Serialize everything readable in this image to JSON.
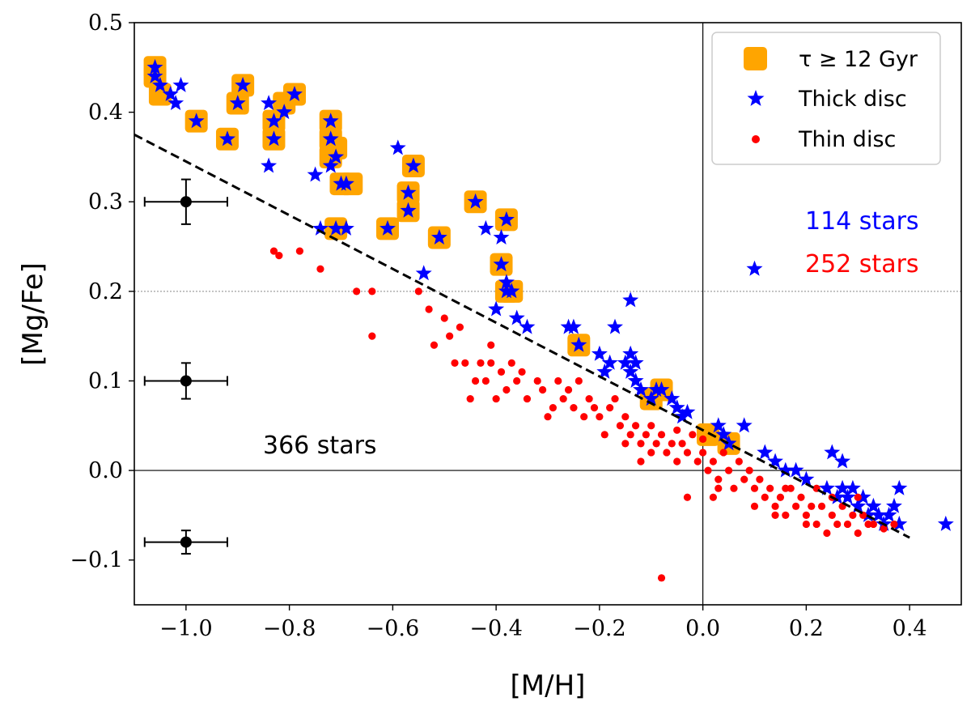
{
  "chart_data": {
    "type": "scatter",
    "xlabel": "[M/H]",
    "ylabel": "[Mg/Fe]",
    "xlim": [
      -1.1,
      0.5
    ],
    "ylim": [
      -0.15,
      0.5
    ],
    "xticks": [
      -1.0,
      -0.8,
      -0.6,
      -0.4,
      -0.2,
      0.0,
      0.2,
      0.4
    ],
    "xtick_labels": [
      "−1.0",
      "−0.8",
      "−0.6",
      "−0.4",
      "−0.2",
      "0.0",
      "0.2",
      "0.4"
    ],
    "yticks": [
      -0.1,
      0.0,
      0.1,
      0.2,
      0.3,
      0.4,
      0.5
    ],
    "ytick_labels": [
      "−0.1",
      "0.0",
      "0.1",
      "0.2",
      "0.3",
      "0.4",
      "0.5"
    ],
    "colors": {
      "old": "#ffa500",
      "thick": "#0000ff",
      "thin": "#ff0000",
      "fit": "#000000",
      "ref": "#888888"
    },
    "legend": {
      "position": "top-right",
      "entries": [
        {
          "key": "old",
          "label": "τ ≥ 12 Gyr"
        },
        {
          "key": "thick",
          "label": "Thick disc"
        },
        {
          "key": "thin",
          "label": "Thin disc"
        }
      ]
    },
    "annotations": {
      "total": "366 stars",
      "thick_count": "114 stars",
      "thin_count": "252 stars"
    },
    "fit_line": {
      "x": [
        -1.1,
        0.4
      ],
      "y": [
        0.375,
        -0.075
      ]
    },
    "reference_lines": {
      "vertical_x": 0.0,
      "horizontal_y": 0.0,
      "dotted_y": 0.2
    },
    "error_bars": [
      {
        "x": -1.0,
        "y": 0.3,
        "xerr": 0.08,
        "yerr": 0.025
      },
      {
        "x": -1.0,
        "y": 0.1,
        "xerr": 0.08,
        "yerr": 0.02
      },
      {
        "x": -1.0,
        "y": -0.08,
        "xerr": 0.08,
        "yerr": 0.013
      }
    ],
    "series": [
      {
        "name": "τ ≥ 12 Gyr",
        "key": "old",
        "marker": "square",
        "points": [
          [
            -1.06,
            0.45
          ],
          [
            -1.06,
            0.44
          ],
          [
            -1.05,
            0.42
          ],
          [
            -0.98,
            0.39
          ],
          [
            -0.92,
            0.37
          ],
          [
            -0.9,
            0.41
          ],
          [
            -0.89,
            0.43
          ],
          [
            -0.83,
            0.37
          ],
          [
            -0.83,
            0.39
          ],
          [
            -0.81,
            0.41
          ],
          [
            -0.79,
            0.42
          ],
          [
            -0.72,
            0.39
          ],
          [
            -0.72,
            0.37
          ],
          [
            -0.72,
            0.35
          ],
          [
            -0.71,
            0.36
          ],
          [
            -0.7,
            0.32
          ],
          [
            -0.68,
            0.32
          ],
          [
            -0.71,
            0.27
          ],
          [
            -0.61,
            0.27
          ],
          [
            -0.57,
            0.31
          ],
          [
            -0.57,
            0.29
          ],
          [
            -0.56,
            0.34
          ],
          [
            -0.51,
            0.26
          ],
          [
            -0.44,
            0.3
          ],
          [
            -0.39,
            0.23
          ],
          [
            -0.38,
            0.28
          ],
          [
            -0.38,
            0.2
          ],
          [
            -0.37,
            0.2
          ],
          [
            -0.24,
            0.14
          ],
          [
            -0.1,
            0.08
          ],
          [
            -0.08,
            0.09
          ],
          [
            0.01,
            0.04
          ],
          [
            0.05,
            0.03
          ]
        ]
      },
      {
        "name": "Thick disc",
        "key": "thick",
        "marker": "star",
        "points": [
          [
            -1.06,
            0.45
          ],
          [
            -1.06,
            0.44
          ],
          [
            -1.05,
            0.43
          ],
          [
            -1.03,
            0.42
          ],
          [
            -1.01,
            0.43
          ],
          [
            -1.02,
            0.41
          ],
          [
            -0.98,
            0.39
          ],
          [
            -0.92,
            0.37
          ],
          [
            -0.9,
            0.41
          ],
          [
            -0.89,
            0.43
          ],
          [
            -0.84,
            0.41
          ],
          [
            -0.84,
            0.34
          ],
          [
            -0.83,
            0.37
          ],
          [
            -0.83,
            0.39
          ],
          [
            -0.81,
            0.4
          ],
          [
            -0.79,
            0.42
          ],
          [
            -0.75,
            0.33
          ],
          [
            -0.74,
            0.27
          ],
          [
            -0.72,
            0.39
          ],
          [
            -0.72,
            0.37
          ],
          [
            -0.72,
            0.34
          ],
          [
            -0.71,
            0.35
          ],
          [
            -0.7,
            0.32
          ],
          [
            -0.69,
            0.32
          ],
          [
            -0.71,
            0.27
          ],
          [
            -0.69,
            0.27
          ],
          [
            -0.61,
            0.27
          ],
          [
            -0.59,
            0.36
          ],
          [
            -0.57,
            0.31
          ],
          [
            -0.57,
            0.29
          ],
          [
            -0.56,
            0.34
          ],
          [
            -0.54,
            0.22
          ],
          [
            -0.51,
            0.26
          ],
          [
            -0.44,
            0.3
          ],
          [
            -0.42,
            0.27
          ],
          [
            -0.4,
            0.18
          ],
          [
            -0.39,
            0.26
          ],
          [
            -0.39,
            0.23
          ],
          [
            -0.38,
            0.28
          ],
          [
            -0.38,
            0.21
          ],
          [
            -0.38,
            0.2
          ],
          [
            -0.37,
            0.2
          ],
          [
            -0.36,
            0.17
          ],
          [
            -0.34,
            0.16
          ],
          [
            -0.26,
            0.16
          ],
          [
            -0.25,
            0.16
          ],
          [
            -0.24,
            0.14
          ],
          [
            -0.2,
            0.13
          ],
          [
            -0.18,
            0.12
          ],
          [
            -0.19,
            0.11
          ],
          [
            -0.17,
            0.16
          ],
          [
            -0.15,
            0.12
          ],
          [
            -0.14,
            0.13
          ],
          [
            -0.14,
            0.11
          ],
          [
            -0.13,
            0.12
          ],
          [
            -0.13,
            0.1
          ],
          [
            -0.14,
            0.19
          ],
          [
            -0.12,
            0.09
          ],
          [
            -0.1,
            0.08
          ],
          [
            -0.09,
            0.09
          ],
          [
            -0.08,
            0.09
          ],
          [
            -0.06,
            0.08
          ],
          [
            -0.05,
            0.07
          ],
          [
            -0.04,
            0.06
          ],
          [
            -0.03,
            0.065
          ],
          [
            0.03,
            0.05
          ],
          [
            0.04,
            0.04
          ],
          [
            0.05,
            0.03
          ],
          [
            0.08,
            0.05
          ],
          [
            0.1,
            0.225
          ],
          [
            0.12,
            0.02
          ],
          [
            0.14,
            0.01
          ],
          [
            0.16,
            0.0
          ],
          [
            0.18,
            0.0
          ],
          [
            0.2,
            -0.01
          ],
          [
            0.24,
            -0.02
          ],
          [
            0.25,
            0.02
          ],
          [
            0.27,
            0.01
          ],
          [
            0.26,
            -0.03
          ],
          [
            0.27,
            -0.02
          ],
          [
            0.28,
            -0.03
          ],
          [
            0.29,
            -0.02
          ],
          [
            0.3,
            -0.04
          ],
          [
            0.31,
            -0.03
          ],
          [
            0.32,
            -0.05
          ],
          [
            0.33,
            -0.04
          ],
          [
            0.34,
            -0.05
          ],
          [
            0.35,
            -0.06
          ],
          [
            0.36,
            -0.05
          ],
          [
            0.37,
            -0.04
          ],
          [
            0.38,
            -0.02
          ],
          [
            0.38,
            -0.06
          ],
          [
            0.47,
            -0.06
          ]
        ]
      },
      {
        "name": "Thin disc",
        "key": "thin",
        "marker": "circle",
        "points": [
          [
            -0.83,
            0.245
          ],
          [
            -0.82,
            0.24
          ],
          [
            -0.78,
            0.245
          ],
          [
            -0.74,
            0.225
          ],
          [
            -0.67,
            0.2
          ],
          [
            -0.64,
            0.2
          ],
          [
            -0.64,
            0.15
          ],
          [
            -0.55,
            0.2
          ],
          [
            -0.53,
            0.18
          ],
          [
            -0.52,
            0.14
          ],
          [
            -0.5,
            0.17
          ],
          [
            -0.49,
            0.15
          ],
          [
            -0.48,
            0.12
          ],
          [
            -0.47,
            0.16
          ],
          [
            -0.46,
            0.12
          ],
          [
            -0.45,
            0.08
          ],
          [
            -0.44,
            0.1
          ],
          [
            -0.43,
            0.12
          ],
          [
            -0.42,
            0.1
          ],
          [
            -0.41,
            0.14
          ],
          [
            -0.41,
            0.12
          ],
          [
            -0.4,
            0.08
          ],
          [
            -0.39,
            0.11
          ],
          [
            -0.38,
            0.09
          ],
          [
            -0.37,
            0.12
          ],
          [
            -0.36,
            0.1
          ],
          [
            -0.35,
            0.11
          ],
          [
            -0.34,
            0.08
          ],
          [
            -0.32,
            0.1
          ],
          [
            -0.31,
            0.09
          ],
          [
            -0.3,
            0.06
          ],
          [
            -0.29,
            0.07
          ],
          [
            -0.28,
            0.1
          ],
          [
            -0.27,
            0.08
          ],
          [
            -0.26,
            0.09
          ],
          [
            -0.25,
            0.07
          ],
          [
            -0.24,
            0.1
          ],
          [
            -0.23,
            0.06
          ],
          [
            -0.22,
            0.08
          ],
          [
            -0.21,
            0.07
          ],
          [
            -0.2,
            0.06
          ],
          [
            -0.19,
            0.04
          ],
          [
            -0.18,
            0.07
          ],
          [
            -0.17,
            0.08
          ],
          [
            -0.16,
            0.05
          ],
          [
            -0.15,
            0.06
          ],
          [
            -0.14,
            0.04
          ],
          [
            -0.13,
            0.05
          ],
          [
            -0.12,
            0.03
          ],
          [
            -0.11,
            0.04
          ],
          [
            -0.1,
            0.05
          ],
          [
            -0.09,
            0.03
          ],
          [
            -0.08,
            0.04
          ],
          [
            -0.07,
            0.02
          ],
          [
            -0.06,
            0.03
          ],
          [
            -0.05,
            0.01
          ],
          [
            -0.04,
            0.03
          ],
          [
            -0.03,
            0.02
          ],
          [
            -0.02,
            0.04
          ],
          [
            -0.01,
            0.01
          ],
          [
            0.0,
            0.02
          ],
          [
            0.01,
            0.0
          ],
          [
            0.02,
            0.01
          ],
          [
            0.03,
            -0.01
          ],
          [
            0.04,
            0.02
          ],
          [
            0.05,
            0.0
          ],
          [
            0.06,
            -0.02
          ],
          [
            0.07,
            0.01
          ],
          [
            0.08,
            -0.01
          ],
          [
            0.09,
            0.0
          ],
          [
            0.1,
            -0.02
          ],
          [
            0.11,
            -0.01
          ],
          [
            0.12,
            -0.03
          ],
          [
            0.13,
            -0.02
          ],
          [
            0.14,
            -0.04
          ],
          [
            0.15,
            -0.03
          ],
          [
            0.16,
            -0.05
          ],
          [
            0.17,
            -0.02
          ],
          [
            0.18,
            -0.04
          ],
          [
            0.19,
            -0.03
          ],
          [
            0.2,
            -0.05
          ],
          [
            0.21,
            -0.04
          ],
          [
            0.22,
            -0.06
          ],
          [
            0.23,
            -0.04
          ],
          [
            0.24,
            -0.07
          ],
          [
            0.25,
            -0.05
          ],
          [
            0.26,
            -0.06
          ],
          [
            0.27,
            -0.04
          ],
          [
            0.28,
            -0.06
          ],
          [
            0.29,
            -0.05
          ],
          [
            0.3,
            -0.07
          ],
          [
            0.31,
            -0.05
          ],
          [
            0.32,
            -0.06
          ],
          [
            0.33,
            -0.06
          ],
          [
            0.35,
            -0.065
          ],
          [
            0.37,
            -0.06
          ],
          [
            -0.03,
            -0.03
          ],
          [
            -0.08,
            -0.12
          ],
          [
            0.03,
            -0.02
          ],
          [
            0.16,
            -0.02
          ],
          [
            -0.1,
            0.02
          ],
          [
            -0.12,
            0.01
          ],
          [
            -0.15,
            0.03
          ],
          [
            -0.05,
            0.045
          ],
          [
            0.0,
            0.035
          ],
          [
            0.02,
            -0.03
          ],
          [
            0.1,
            -0.04
          ],
          [
            0.14,
            -0.05
          ],
          [
            0.2,
            -0.06
          ],
          [
            0.22,
            -0.02
          ],
          [
            0.25,
            -0.03
          ],
          [
            0.3,
            -0.03
          ]
        ]
      }
    ]
  }
}
